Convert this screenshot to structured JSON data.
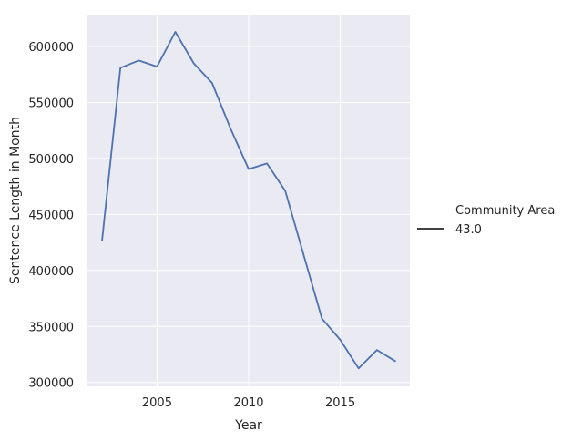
{
  "chart_data": {
    "type": "line",
    "xlabel": "Year",
    "ylabel": "Sentence Length in Month",
    "xlim": [
      2001.2,
      2018.8
    ],
    "ylim": [
      296500,
      628500
    ],
    "xticks": [
      2005,
      2010,
      2015
    ],
    "yticks": [
      300000,
      350000,
      400000,
      450000,
      500000,
      550000,
      600000
    ],
    "grid": true,
    "legend": {
      "title": "Community Area",
      "placement": "right",
      "entries": [
        "43.0"
      ]
    },
    "series": [
      {
        "name": "43.0",
        "color": "#4c72b0",
        "x": [
          2002,
          2003,
          2004,
          2005,
          2006,
          2007,
          2008,
          2009,
          2010,
          2011,
          2012,
          2013,
          2014,
          2015,
          2016,
          2017,
          2018
        ],
        "values": [
          427000,
          581000,
          587500,
          582000,
          613000,
          585000,
          567500,
          527000,
          490500,
          495500,
          471000,
          414000,
          357000,
          338000,
          312500,
          329000,
          319000
        ]
      }
    ],
    "colors": {
      "plot_bg": "#eaeaf2",
      "grid": "#ffffff",
      "text": "#262626",
      "legend_line": "#262626"
    }
  }
}
